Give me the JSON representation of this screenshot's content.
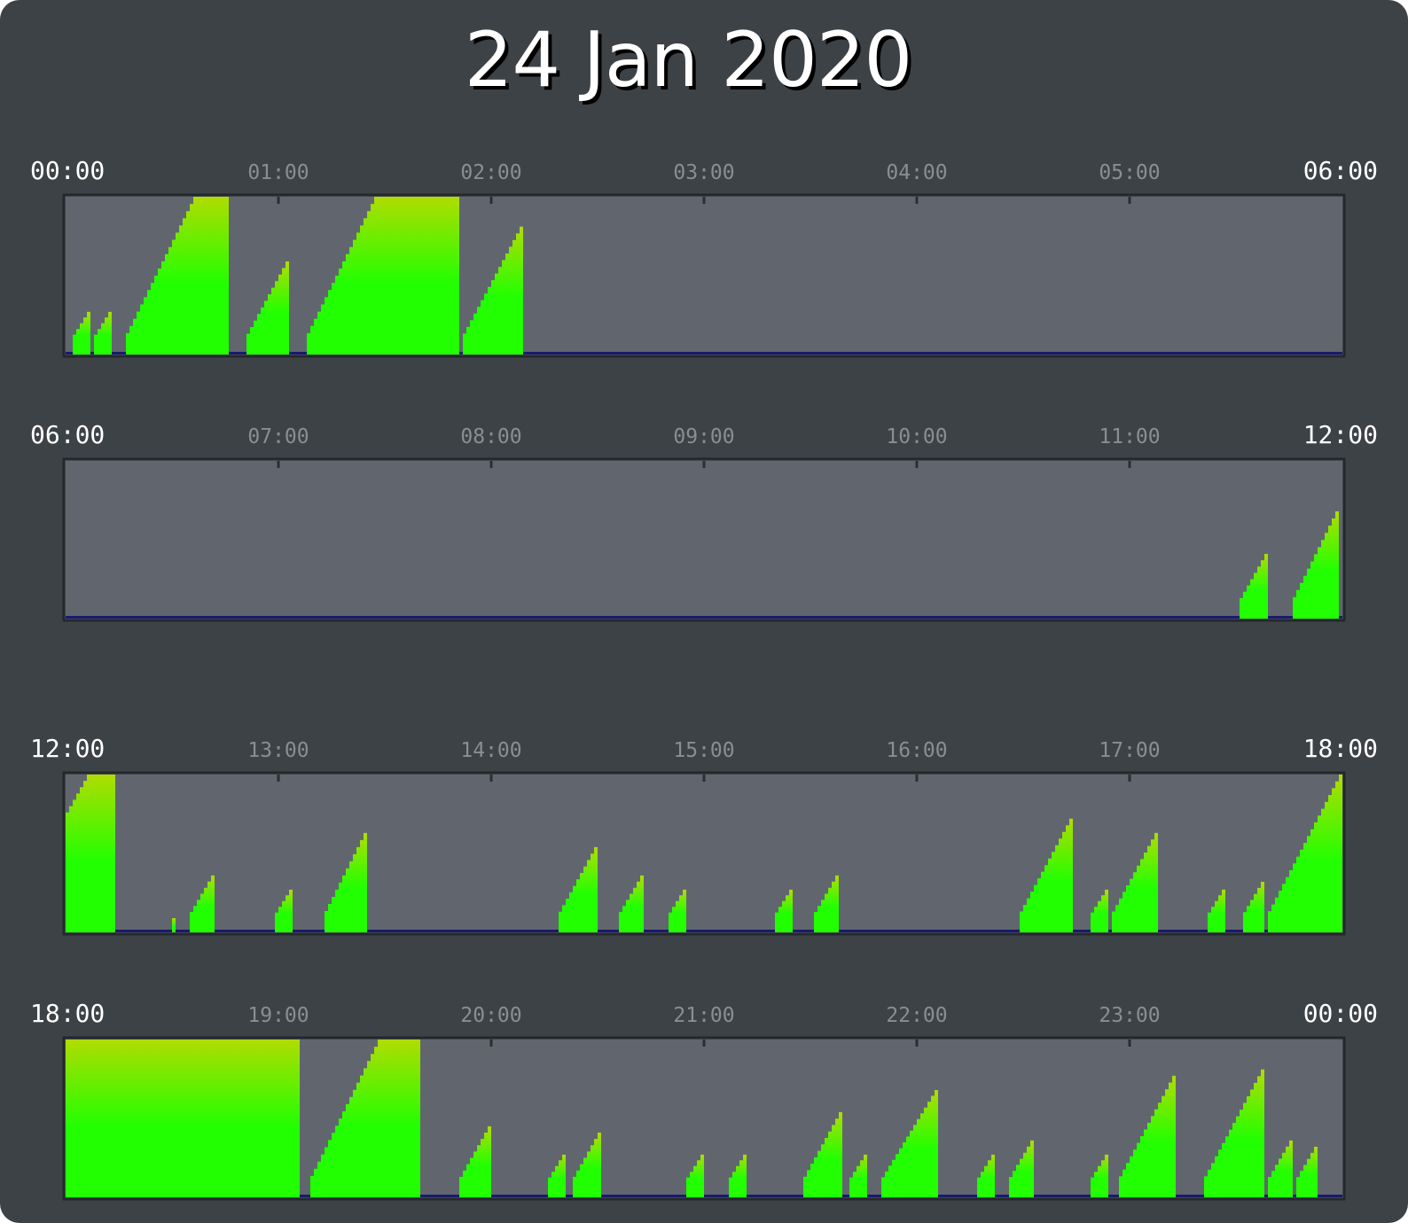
{
  "title": "24 Jan 2020",
  "colors": {
    "background": "#3d4246",
    "panel": "#61666e",
    "panel_border": "#24282b",
    "baseline": "#1a1a6e",
    "low": "#22ff00",
    "high": "#b0dc00",
    "tick_mark": "#2a2e31"
  },
  "chart_data": {
    "type": "area",
    "title": "24 Jan 2020",
    "value_range": [
      0,
      1
    ],
    "x_unit": "time of day (HH:MM)",
    "rows": [
      {
        "start": "00:00",
        "end": "06:00",
        "tick_labels": [
          "00:00",
          "01:00",
          "02:00",
          "03:00",
          "04:00",
          "05:00",
          "06:00"
        ],
        "segments": [
          {
            "start": "00:02",
            "end": "00:07",
            "from": 0.09,
            "to": 0.27
          },
          {
            "start": "00:08",
            "end": "00:13",
            "from": 0.09,
            "to": 0.27
          },
          {
            "start": "00:17",
            "end": "00:37",
            "from": 0.09,
            "to": 1.0
          },
          {
            "start": "00:37",
            "end": "00:46",
            "from": 1.0,
            "to": 1.0
          },
          {
            "start": "00:51",
            "end": "01:03",
            "from": 0.09,
            "to": 0.59
          },
          {
            "start": "01:08",
            "end": "01:28",
            "from": 0.09,
            "to": 1.0
          },
          {
            "start": "01:28",
            "end": "01:51",
            "from": 1.0,
            "to": 1.0
          },
          {
            "start": "01:52",
            "end": "02:09",
            "from": 0.09,
            "to": 0.81
          }
        ]
      },
      {
        "start": "06:00",
        "end": "12:00",
        "tick_labels": [
          "06:00",
          "07:00",
          "08:00",
          "09:00",
          "10:00",
          "11:00",
          "12:00"
        ],
        "segments": [
          {
            "start": "11:31",
            "end": "11:39",
            "from": 0.09,
            "to": 0.41
          },
          {
            "start": "11:46",
            "end": "11:59",
            "from": 0.09,
            "to": 0.68
          }
        ]
      },
      {
        "start": "12:00",
        "end": "18:00",
        "tick_labels": [
          "12:00",
          "13:00",
          "14:00",
          "15:00",
          "16:00",
          "17:00",
          "18:00"
        ],
        "segments": [
          {
            "start": "12:00",
            "end": "12:07",
            "from": 0.72,
            "to": 1.0
          },
          {
            "start": "12:07",
            "end": "12:14",
            "from": 1.0,
            "to": 1.0
          },
          {
            "start": "12:30",
            "end": "12:31",
            "from": 0.09,
            "to": 0.09
          },
          {
            "start": "12:35",
            "end": "12:42",
            "from": 0.09,
            "to": 0.36
          },
          {
            "start": "12:59",
            "end": "13:04",
            "from": 0.09,
            "to": 0.27
          },
          {
            "start": "13:13",
            "end": "13:25",
            "from": 0.09,
            "to": 0.63
          },
          {
            "start": "14:19",
            "end": "14:30",
            "from": 0.09,
            "to": 0.54
          },
          {
            "start": "14:36",
            "end": "14:43",
            "from": 0.09,
            "to": 0.36
          },
          {
            "start": "14:50",
            "end": "14:55",
            "from": 0.09,
            "to": 0.27
          },
          {
            "start": "15:20",
            "end": "15:25",
            "from": 0.09,
            "to": 0.27
          },
          {
            "start": "15:31",
            "end": "15:38",
            "from": 0.09,
            "to": 0.36
          },
          {
            "start": "16:29",
            "end": "16:44",
            "from": 0.09,
            "to": 0.72
          },
          {
            "start": "16:49",
            "end": "16:54",
            "from": 0.09,
            "to": 0.27
          },
          {
            "start": "16:55",
            "end": "17:08",
            "from": 0.09,
            "to": 0.63
          },
          {
            "start": "17:22",
            "end": "17:27",
            "from": 0.09,
            "to": 0.27
          },
          {
            "start": "17:32",
            "end": "17:38",
            "from": 0.09,
            "to": 0.32
          },
          {
            "start": "17:39",
            "end": "18:00",
            "from": 0.09,
            "to": 1.0
          }
        ]
      },
      {
        "start": "18:00",
        "end": "00:00",
        "tick_labels": [
          "18:00",
          "19:00",
          "20:00",
          "21:00",
          "22:00",
          "23:00",
          "00:00"
        ],
        "segments": [
          {
            "start": "18:00",
            "end": "19:06",
            "from": 1.0,
            "to": 1.0
          },
          {
            "start": "19:09",
            "end": "19:29",
            "from": 0.09,
            "to": 1.0
          },
          {
            "start": "19:29",
            "end": "19:40",
            "from": 1.0,
            "to": 1.0
          },
          {
            "start": "19:51",
            "end": "20:00",
            "from": 0.09,
            "to": 0.45
          },
          {
            "start": "20:16",
            "end": "20:21",
            "from": 0.09,
            "to": 0.27
          },
          {
            "start": "20:23",
            "end": "20:31",
            "from": 0.09,
            "to": 0.41
          },
          {
            "start": "20:55",
            "end": "21:00",
            "from": 0.09,
            "to": 0.27
          },
          {
            "start": "21:07",
            "end": "21:12",
            "from": 0.09,
            "to": 0.27
          },
          {
            "start": "21:28",
            "end": "21:39",
            "from": 0.09,
            "to": 0.54
          },
          {
            "start": "21:41",
            "end": "21:46",
            "from": 0.09,
            "to": 0.27
          },
          {
            "start": "21:50",
            "end": "22:06",
            "from": 0.09,
            "to": 0.68
          },
          {
            "start": "22:17",
            "end": "22:22",
            "from": 0.09,
            "to": 0.27
          },
          {
            "start": "22:26",
            "end": "22:33",
            "from": 0.09,
            "to": 0.36
          },
          {
            "start": "22:49",
            "end": "22:54",
            "from": 0.09,
            "to": 0.27
          },
          {
            "start": "22:57",
            "end": "23:13",
            "from": 0.09,
            "to": 0.77
          },
          {
            "start": "23:21",
            "end": "23:38",
            "from": 0.09,
            "to": 0.81
          },
          {
            "start": "23:39",
            "end": "23:46",
            "from": 0.09,
            "to": 0.36
          },
          {
            "start": "23:47",
            "end": "23:53",
            "from": 0.09,
            "to": 0.32
          }
        ]
      }
    ]
  }
}
